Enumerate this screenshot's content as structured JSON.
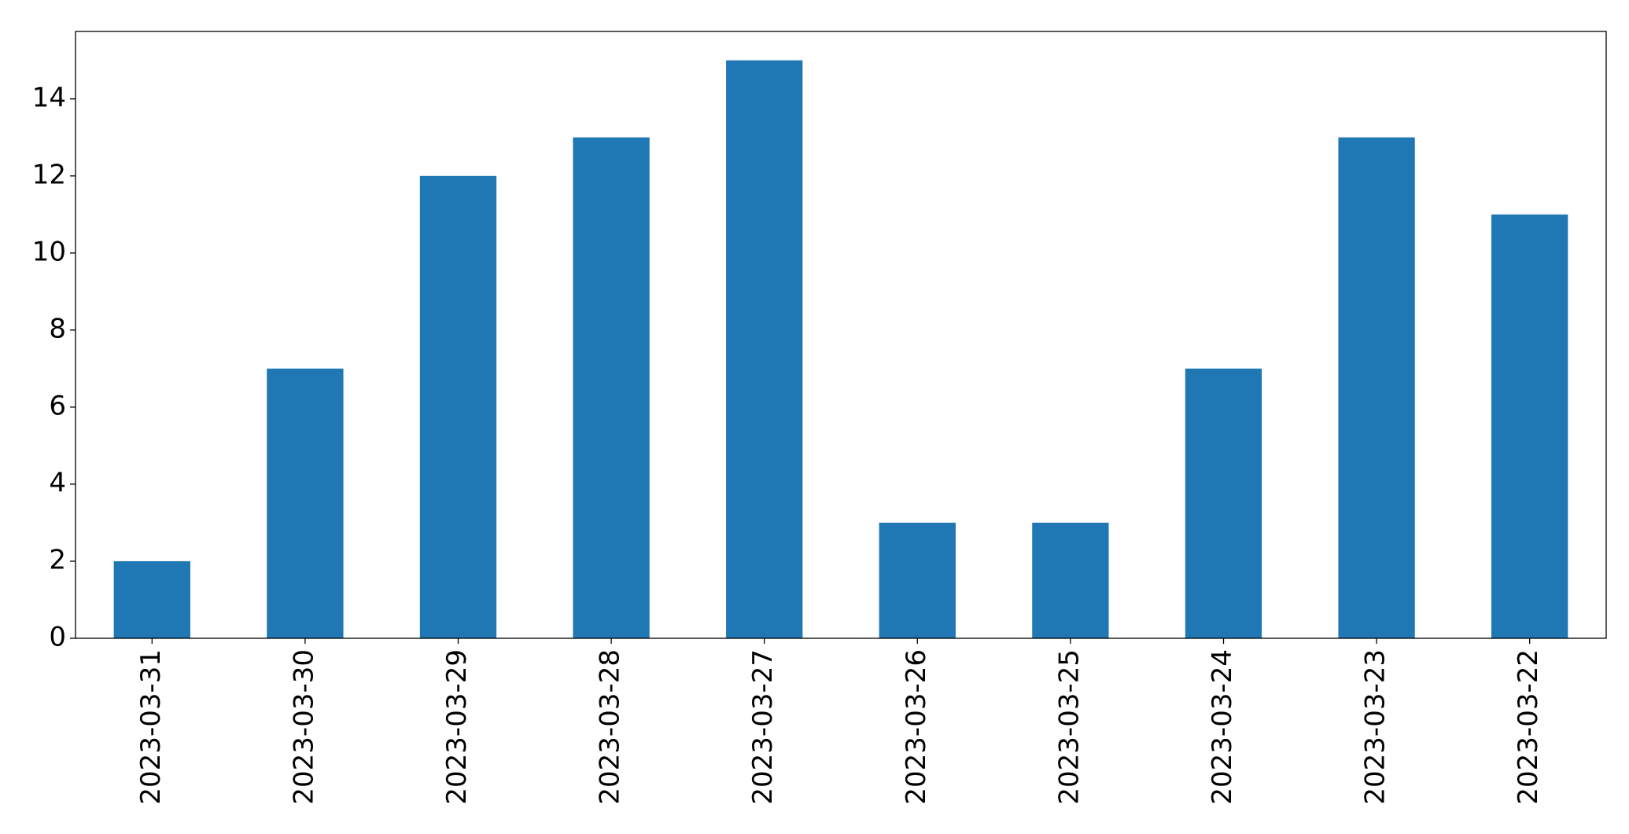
{
  "chart_data": {
    "type": "bar",
    "categories": [
      "2023-03-31",
      "2023-03-30",
      "2023-03-29",
      "2023-03-28",
      "2023-03-27",
      "2023-03-26",
      "2023-03-25",
      "2023-03-24",
      "2023-03-23",
      "2023-03-22"
    ],
    "values": [
      2,
      7,
      12,
      13,
      15,
      3,
      3,
      7,
      13,
      11
    ],
    "color": "#1f77b4",
    "ylim": [
      0,
      15.75
    ],
    "yticks": [
      0,
      2,
      4,
      6,
      8,
      10,
      12,
      14
    ],
    "grid": false
  }
}
